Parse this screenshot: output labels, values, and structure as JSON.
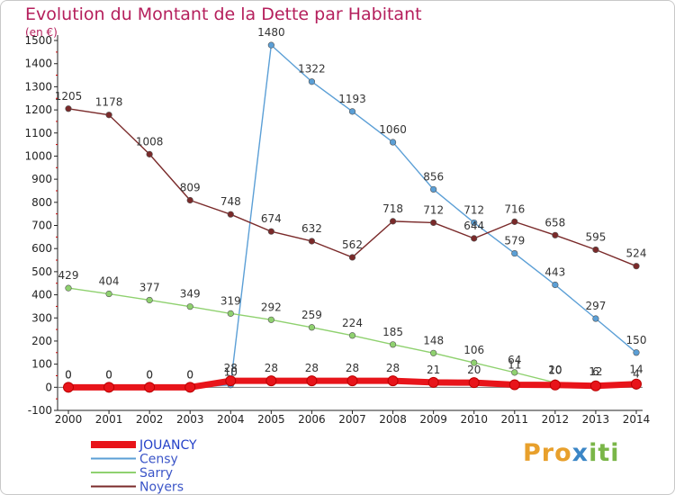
{
  "title": "Evolution du Montant de la Dette par Habitant",
  "unit": "(en €)",
  "logo": {
    "part1": "Pro",
    "part2": "x",
    "part3": "iti"
  },
  "chart_data": {
    "type": "line",
    "title": "Evolution du Montant de la Dette par Habitant",
    "ylabel": "(en €)",
    "x": [
      "2000",
      "2001",
      "2002",
      "2003",
      "2004",
      "2005",
      "2006",
      "2007",
      "2008",
      "2009",
      "2010",
      "2011",
      "2012",
      "2013",
      "2014"
    ],
    "yticks": [
      -100,
      0,
      100,
      200,
      300,
      400,
      500,
      600,
      700,
      800,
      900,
      1000,
      1100,
      1200,
      1300,
      1400,
      1500
    ],
    "ylim": [
      -100,
      1500
    ],
    "grid": false,
    "legend_position": "bottom-left",
    "series": [
      {
        "name": "JOUANCY",
        "color": "#e8141a",
        "values": [
          0,
          0,
          0,
          0,
          28,
          28,
          28,
          28,
          28,
          21,
          20,
          11,
          10,
          6,
          14
        ]
      },
      {
        "name": "Censy",
        "color": "#5b9fd6",
        "values": [
          0,
          0,
          0,
          0,
          10,
          1480,
          1322,
          1193,
          1060,
          856,
          712,
          579,
          443,
          297,
          150
        ]
      },
      {
        "name": "Sarry",
        "color": "#8fd16f",
        "values": [
          429,
          404,
          377,
          349,
          319,
          292,
          259,
          224,
          185,
          148,
          106,
          64,
          20,
          12,
          4
        ]
      },
      {
        "name": "Noyers",
        "color": "#7a2a2a",
        "values": [
          1205,
          1178,
          1008,
          809,
          748,
          674,
          632,
          562,
          718,
          712,
          644,
          716,
          658,
          595,
          524
        ]
      }
    ],
    "data_labels": [
      {
        "series": "JOUANCY",
        "texts": [
          "0",
          "0",
          "0",
          "0",
          "28",
          "28",
          "28",
          "28",
          "28",
          "21",
          "20",
          "",
          "",
          "",
          ""
        ]
      },
      {
        "series": "Censy",
        "texts": [
          "0",
          "0",
          "0",
          "0",
          "10",
          "1480",
          "1322",
          "1193",
          "1060",
          "856",
          "712",
          "",
          "443",
          "297",
          "150"
        ]
      },
      {
        "series": "Sarry",
        "texts": [
          "429",
          "404",
          "377",
          "349",
          "319",
          "292",
          "259",
          "224",
          "185",
          "148",
          "106",
          "64",
          "20",
          "12",
          "4"
        ]
      },
      {
        "series": "Noyers",
        "texts": [
          "1205",
          "1178",
          "1008",
          "809",
          "748",
          "674",
          "632",
          "562",
          "718",
          "712",
          "644",
          "716",
          "658",
          "595",
          "524"
        ]
      }
    ],
    "extra_labels": [
      "579",
      "11",
      "10",
      "6",
      "14"
    ]
  }
}
